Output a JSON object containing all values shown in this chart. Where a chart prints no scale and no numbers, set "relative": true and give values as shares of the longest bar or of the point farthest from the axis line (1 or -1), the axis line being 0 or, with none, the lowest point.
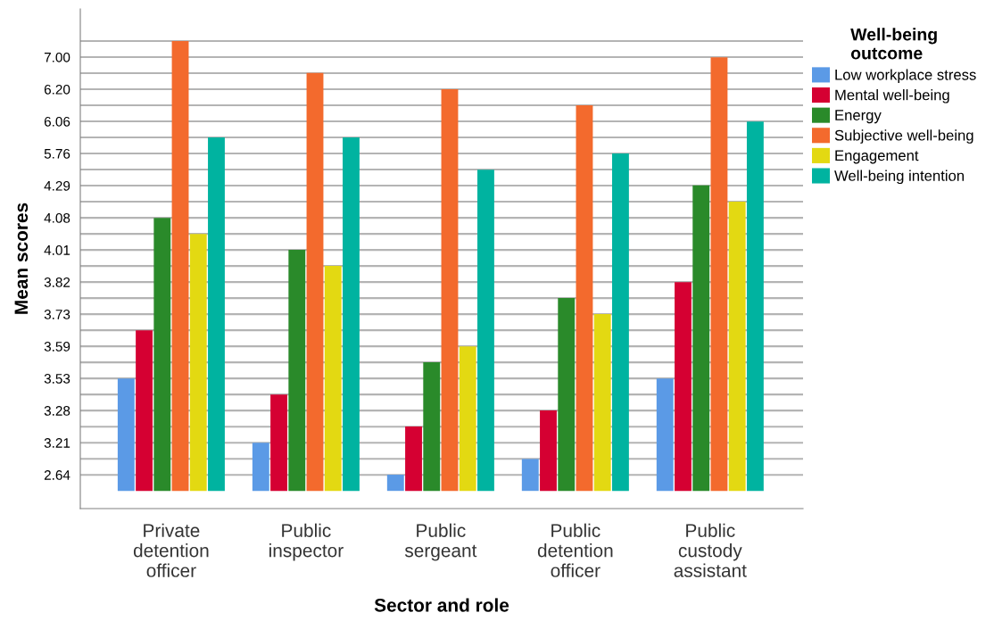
{
  "chart_data": {
    "type": "bar",
    "relative": true,
    "xlabel": "Sector and role",
    "ylabel": "Mean scores",
    "legend_title": "Well-being\noutcome",
    "categories": [
      "Private\ndetention\nofficer",
      "Public\ninspector",
      "Public\nsergeant",
      "Public\ndetention\nofficer",
      "Public\ncustody\nassistant"
    ],
    "y_categories": [
      null,
      "7.00",
      null,
      "6.20",
      null,
      "6.06",
      null,
      "5.76",
      null,
      "4.29",
      null,
      "4.08",
      null,
      "4.01",
      null,
      "3.82",
      null,
      "3.73",
      null,
      "3.59",
      null,
      "3.53",
      null,
      "3.28",
      null,
      "3.21",
      null,
      "2.64"
    ],
    "series": [
      {
        "name": "Low workplace stress",
        "color": "#5b9ae6",
        "values": [
          0.25,
          0.107,
          0.036,
          0.071,
          0.25
        ]
      },
      {
        "name": "Mental well-being",
        "color": "#d50032",
        "values": [
          0.357,
          0.214,
          0.143,
          0.179,
          0.464
        ]
      },
      {
        "name": "Energy",
        "color": "#2a8a2a",
        "values": [
          0.607,
          0.536,
          0.286,
          0.429,
          0.679
        ]
      },
      {
        "name": "Subjective well-being",
        "color": "#f36a2d",
        "values": [
          1,
          0.929,
          0.893,
          0.857,
          0.964
        ]
      },
      {
        "name": "Engagement",
        "color": "#e3d912",
        "values": [
          0.571,
          0.5,
          0.321,
          0.393,
          0.643
        ]
      },
      {
        "name": "Well-being intention",
        "color": "#00b3a0",
        "values": [
          0.786,
          0.786,
          0.714,
          0.75,
          0.821
        ]
      }
    ],
    "grid": "y",
    "legend": "right"
  }
}
